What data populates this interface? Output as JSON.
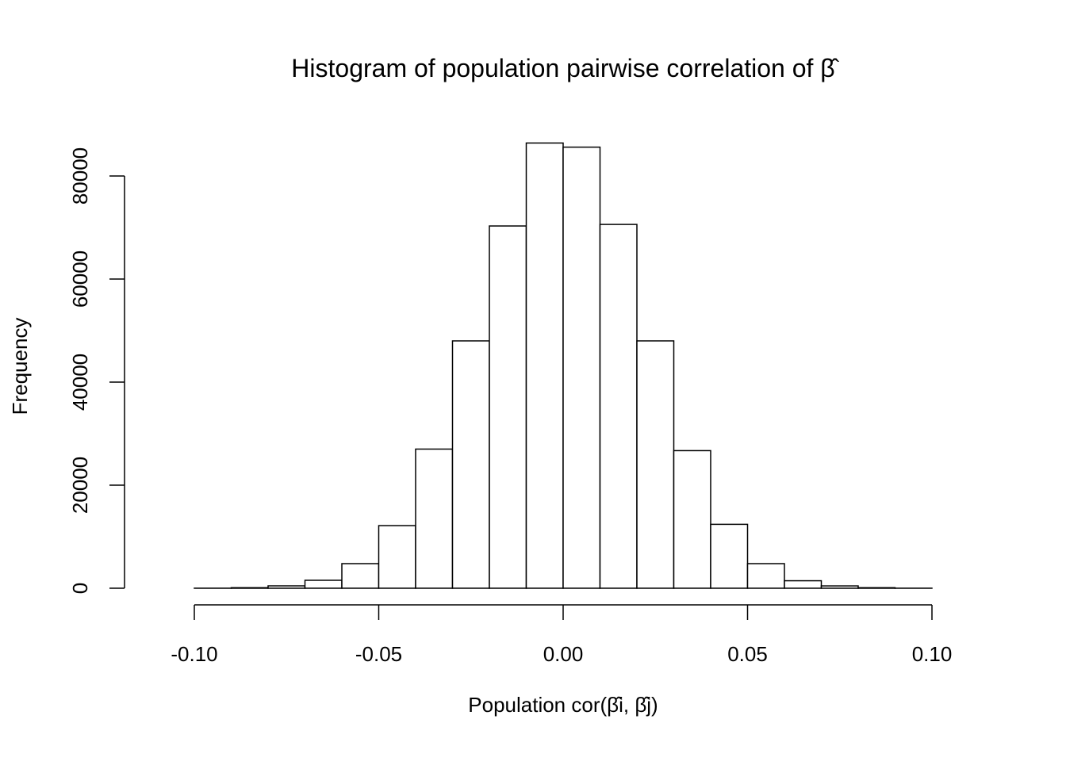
{
  "chart_data": {
    "type": "bar",
    "title": "Histogram of population pairwise correlation of β̂",
    "xlabel": "Population cor(β̂i, β̂j)",
    "ylabel": "Frequency",
    "bin_edges": [
      -0.11,
      -0.1,
      -0.09,
      -0.08,
      -0.07,
      -0.06,
      -0.05,
      -0.04,
      -0.03,
      -0.02,
      -0.01,
      0.0,
      0.01,
      0.02,
      0.03,
      0.04,
      0.05,
      0.06,
      0.07,
      0.08,
      0.09,
      0.1,
      0.11
    ],
    "values": [
      0,
      5,
      100,
      460,
      1540,
      4770,
      12150,
      27000,
      48000,
      70300,
      86400,
      85600,
      70600,
      48000,
      26700,
      12400,
      4770,
      1450,
      450,
      100,
      5,
      0
    ],
    "xlim": [
      -0.11,
      0.11
    ],
    "ylim": [
      0,
      86400
    ],
    "x_ticks": [
      -0.1,
      -0.05,
      0.0,
      0.05,
      0.1
    ],
    "x_tick_labels": [
      "-0.10",
      "-0.05",
      "0.00",
      "0.05",
      "0.10"
    ],
    "y_ticks": [
      0,
      20000,
      40000,
      60000,
      80000
    ],
    "y_tick_labels": [
      "0",
      "20000",
      "40000",
      "60000",
      "80000"
    ],
    "grid": false,
    "bar_fill": "#ffffff",
    "bar_stroke": "#000000"
  }
}
